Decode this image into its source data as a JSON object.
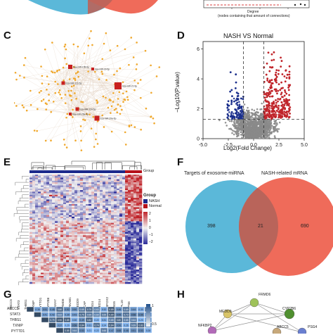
{
  "panels": {
    "c": "C",
    "d": "D",
    "e": "E",
    "f": "F",
    "g": "G",
    "h": "H"
  },
  "panel_b": {
    "xlabel": "Degree",
    "xlabel2": "(nodes containing that amount of connections)"
  },
  "panel_c": {
    "hubs": [
      "hsa-miR-155-5p",
      "hsa-miR-30-5p",
      "hsa-miR-122-5p",
      "hsa-miR-21-5p",
      "hsa-miR-124-5p",
      "hsa-miR-26a-5p",
      "hsa-miR-29a-5p"
    ]
  },
  "volcano": {
    "title": "NASH VS Normal",
    "xlabel": "Log2(Fold Change)",
    "ylabel": "−Log10(P.value)"
  },
  "heatmap": {
    "legend_group_title": "Group",
    "legend_group_items": [
      "NASH",
      "Normal"
    ],
    "top_bar_label": "Group",
    "scale_ticks": [
      "2",
      "1",
      "0",
      "−1",
      "−2"
    ],
    "colors": {
      "nash": "#1c2a8c",
      "normal": "#b5121b",
      "high": "#c0242a",
      "low": "#2b2b9a",
      "mid": "#f2f2f2"
    }
  },
  "venn": {
    "left_title": "Targets of exosome-miRNA",
    "right_title": "NASH-related mRNA",
    "left_only": "398",
    "overlap": "21",
    "right_only": "690",
    "colors": {
      "left": "#5bb8d9",
      "right": "#ef6b5a",
      "overlap": "#b9645a"
    }
  },
  "corr": {
    "row_labels": [
      "ABCC5",
      "STAT3",
      "THBS1",
      "TXNIP",
      "PYTTD1"
    ],
    "col_labels": [
      "ABCC5",
      "STAT3",
      "THBS1",
      "TXNIP",
      "PYTTD1",
      "CYP2B6",
      "ANXA7",
      "FRMD6",
      "PRKAB1",
      "MEDD9",
      "SCAP",
      "PSG4",
      "MED14",
      "RBFOX2",
      "PSG5",
      "RPL10",
      "RPS6"
    ],
    "scale_ticks": [
      "1",
      "0.5"
    ]
  },
  "network": {
    "nodes": [
      "FRMD6",
      "CYP2B6",
      "MEDD9",
      "ABCC5",
      "PSG4",
      "NFKBP2"
    ]
  },
  "chart_data": [
    {
      "type": "scatter",
      "title": "NASH VS Normal",
      "xlabel": "Log2(Fold Change)",
      "ylabel": "−Log10(P.value)",
      "xlim": [
        -5.0,
        5.0
      ],
      "ylim": [
        0,
        6.5
      ],
      "xticks": [
        "-5.0",
        "-2.5",
        "0.0",
        "2.5",
        "5.0"
      ],
      "yticks": [
        "0",
        "2",
        "4",
        "6"
      ],
      "thresholds": {
        "x": [
          -1,
          1
        ],
        "y": 1.3
      }
    },
    {
      "type": "venn",
      "left_only": 398,
      "overlap": 21,
      "right_only": 690
    }
  ]
}
